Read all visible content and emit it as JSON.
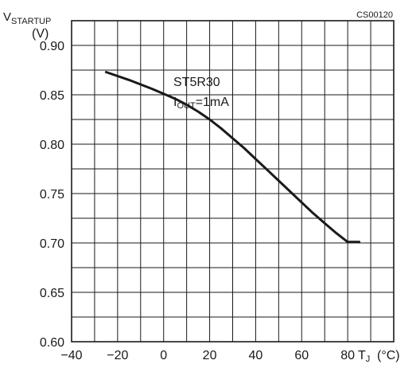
{
  "chart_data": {
    "type": "line",
    "code": "CS00120",
    "ylabel_main": "V",
    "ylabel_sub": "STARTUP",
    "yunit": "(V)",
    "xlabel_main": "T",
    "xlabel_sub": "J",
    "xunit": "(°C)",
    "annotation_line1": "ST5R30",
    "annotation_line2_main": "I",
    "annotation_line2_sub": "OUT",
    "annotation_line2_rest": "=1mA",
    "xlim": [
      -40,
      100
    ],
    "ylim": [
      0.6,
      0.925
    ],
    "x_ticks": [
      -40,
      -20,
      0,
      20,
      40,
      60,
      80
    ],
    "x_tick_labels": [
      "−40",
      "−20",
      "0",
      "20",
      "40",
      "60",
      "80"
    ],
    "y_ticks": [
      0.6,
      0.65,
      0.7,
      0.75,
      0.8,
      0.85,
      0.9
    ],
    "y_tick_labels": [
      "0.60",
      "0.65",
      "0.70",
      "0.75",
      "0.80",
      "0.85",
      "0.90"
    ],
    "grid": true,
    "series": [
      {
        "x": [
          -25,
          -15,
          -5,
          0,
          5,
          10,
          15,
          20,
          25,
          30,
          35,
          40,
          45,
          50,
          55,
          60,
          65,
          70,
          75,
          80,
          85
        ],
        "y": [
          0.873,
          0.865,
          0.856,
          0.851,
          0.846,
          0.84,
          0.833,
          0.825,
          0.816,
          0.806,
          0.796,
          0.785,
          0.774,
          0.763,
          0.752,
          0.741,
          0.73,
          0.72,
          0.71,
          0.701,
          0.701
        ]
      }
    ],
    "colors": {
      "line": "#1a1a1a",
      "grid": "#1a1a1a"
    }
  }
}
